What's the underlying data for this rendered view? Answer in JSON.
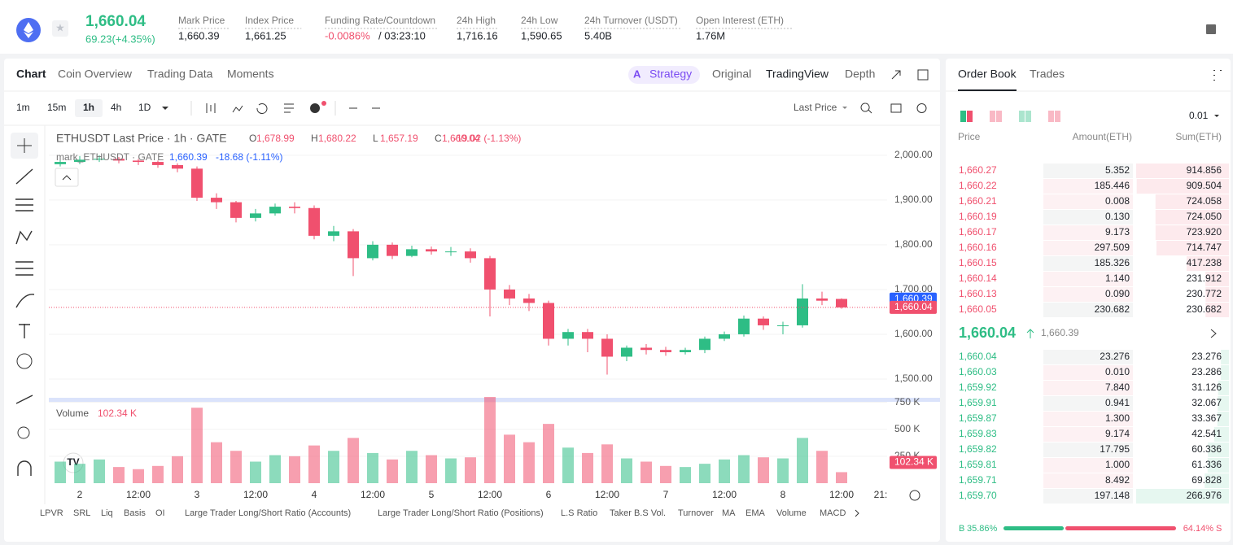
{
  "header": {
    "price": "1,660.04",
    "change": "69.23(+4.35%)",
    "stats": [
      {
        "label": "Mark Price",
        "value": "1,660.39"
      },
      {
        "label": "Index Price",
        "value": "1,661.25"
      },
      {
        "label": "Funding Rate/Countdown",
        "value": "-0.0086%",
        "extra": "/ 03:23:10"
      },
      {
        "label": "24h High",
        "value": "1,716.16"
      },
      {
        "label": "24h Low",
        "value": "1,590.65"
      },
      {
        "label": "24h Turnover (USDT)",
        "value": "5.40B"
      },
      {
        "label": "Open Interest (ETH)",
        "value": "1.76M"
      }
    ]
  },
  "tabs": [
    "Chart",
    "Coin Overview",
    "Trading Data",
    "Moments"
  ],
  "views": [
    "Strategy",
    "Original",
    "TradingView",
    "Depth"
  ],
  "intervals": [
    "1m",
    "15m",
    "1h",
    "4h",
    "1D"
  ],
  "price_source": "Last Price",
  "chart_data": {
    "type": "candlestick",
    "title": "ETHUSDT Last Price · 1h · GATE",
    "legend": [
      {
        "key": "O",
        "value": "1,678.99"
      },
      {
        "key": "H",
        "value": "1,680.22"
      },
      {
        "key": "L",
        "value": "1,657.19"
      },
      {
        "key": "C",
        "value": "1,660.04"
      }
    ],
    "change": "-19.02 (-1.13%)",
    "mark_title": "mark_ETHUSDT · GATE",
    "mark_value": "1,660.39",
    "mark_change": "-18.68 (-1.11%)",
    "open": [
      1980,
      1985,
      1990,
      1992,
      1988,
      1985,
      1978,
      1970,
      1905,
      1895,
      1860,
      1870,
      1885,
      1882,
      1820,
      1830,
      1770,
      1800,
      1775,
      1790,
      1785,
      1785,
      1770,
      1700,
      1680,
      1670,
      1590,
      1605,
      1590,
      1550,
      1570,
      1565,
      1560,
      1565,
      1590,
      1600,
      1635,
      1620,
      1620,
      1680,
      1678.99
    ],
    "high": [
      1995,
      1998,
      2000,
      1996,
      1992,
      1988,
      1982,
      1975,
      1915,
      1898,
      1880,
      1892,
      1895,
      1888,
      1842,
      1835,
      1808,
      1805,
      1798,
      1796,
      1795,
      1792,
      1775,
      1710,
      1690,
      1675,
      1612,
      1612,
      1600,
      1575,
      1578,
      1572,
      1570,
      1595,
      1606,
      1642,
      1640,
      1628,
      1712,
      1695,
      1680.22
    ],
    "low": [
      1975,
      1980,
      1985,
      1982,
      1978,
      1972,
      1962,
      1898,
      1880,
      1850,
      1852,
      1865,
      1870,
      1812,
      1808,
      1730,
      1765,
      1768,
      1772,
      1778,
      1775,
      1760,
      1640,
      1665,
      1652,
      1575,
      1575,
      1560,
      1510,
      1540,
      1555,
      1552,
      1555,
      1558,
      1585,
      1595,
      1610,
      1600,
      1615,
      1665,
      1657.19
    ],
    "close": [
      1985,
      1990,
      1992,
      1988,
      1985,
      1978,
      1970,
      1905,
      1895,
      1860,
      1870,
      1885,
      1882,
      1820,
      1830,
      1770,
      1800,
      1775,
      1790,
      1785,
      1785,
      1770,
      1700,
      1680,
      1670,
      1590,
      1605,
      1590,
      1550,
      1570,
      1565,
      1560,
      1565,
      1590,
      1600,
      1635,
      1620,
      1620,
      1680,
      1675,
      1660.04
    ],
    "volume": [
      200,
      180,
      220,
      150,
      130,
      160,
      250,
      700,
      380,
      300,
      200,
      260,
      250,
      350,
      300,
      420,
      280,
      220,
      300,
      260,
      230,
      240,
      800,
      450,
      380,
      550,
      330,
      280,
      360,
      230,
      200,
      160,
      150,
      180,
      220,
      260,
      240,
      230,
      420,
      300,
      102.34
    ],
    "volume_title": "Volume",
    "volume_label": "102.34 K",
    "up_color": "#2ebd85",
    "down_color": "#f0506e",
    "ylim": [
      1460,
      2056
    ],
    "yticks": [
      {
        "value": 1500,
        "label": "1,500.00"
      },
      {
        "value": 1600,
        "label": "1,600.00"
      },
      {
        "value": 1700,
        "label": "1,700.00"
      },
      {
        "value": 1800,
        "label": "1,800.00"
      },
      {
        "value": 1900,
        "label": "1,900.00"
      },
      {
        "value": 2000,
        "label": "2,000.00"
      }
    ],
    "vlim": [
      0,
      800
    ],
    "vticks": [
      {
        "value": 250,
        "label": "250 K"
      },
      {
        "value": 500,
        "label": "500 K"
      },
      {
        "value": 750,
        "label": "750 K"
      }
    ],
    "mark_price": {
      "value": 1660.39,
      "label": "1,660.39"
    },
    "last_price": {
      "value": 1660.04,
      "label": "1,660.04"
    },
    "xlabels": [
      "2",
      "12:00",
      "3",
      "12:00",
      "4",
      "12:00",
      "5",
      "12:00",
      "6",
      "12:00",
      "7",
      "12:00",
      "8",
      "12:00",
      "21:"
    ]
  },
  "indicators": [
    "LPVR",
    "SRL",
    "Liq",
    "Basis",
    "OI",
    "Large Trader Long/Short Ratio (Accounts)",
    "Large Trader Long/Short Ratio (Positions)",
    "L.S Ratio",
    "Taker B.S Vol.",
    "Turnover",
    "MA",
    "EMA",
    "Volume",
    "MACD"
  ],
  "order_book": {
    "tabs": [
      "Order Book",
      "Trades"
    ],
    "precision": "0.01",
    "columns": [
      "Price",
      "Amount(ETH)",
      "Sum(ETH)"
    ],
    "asks": [
      [
        "1,660.27",
        "5.352",
        "914.856"
      ],
      [
        "1,660.22",
        "185.446",
        "909.504"
      ],
      [
        "1,660.21",
        "0.008",
        "724.058"
      ],
      [
        "1,660.19",
        "0.130",
        "724.050"
      ],
      [
        "1,660.17",
        "9.173",
        "723.920"
      ],
      [
        "1,660.16",
        "297.509",
        "714.747"
      ],
      [
        "1,660.15",
        "185.326",
        "417.238"
      ],
      [
        "1,660.14",
        "1.140",
        "231.912"
      ],
      [
        "1,660.13",
        "0.090",
        "230.772"
      ],
      [
        "1,660.05",
        "230.682",
        "230.682"
      ]
    ],
    "mid": {
      "price": "1,660.04",
      "mark": "1,660.39"
    },
    "bids": [
      [
        "1,660.04",
        "23.276",
        "23.276"
      ],
      [
        "1,660.03",
        "0.010",
        "23.286"
      ],
      [
        "1,659.92",
        "7.840",
        "31.126"
      ],
      [
        "1,659.91",
        "0.941",
        "32.067"
      ],
      [
        "1,659.87",
        "1.300",
        "33.367"
      ],
      [
        "1,659.83",
        "9.174",
        "42.541"
      ],
      [
        "1,659.82",
        "17.795",
        "60.336"
      ],
      [
        "1,659.81",
        "1.000",
        "61.336"
      ],
      [
        "1,659.71",
        "8.492",
        "69.828"
      ],
      [
        "1,659.70",
        "197.148",
        "266.976"
      ]
    ],
    "ratio": {
      "buy_tag": "B",
      "buy": 35.86,
      "buy_label": "35.86%",
      "sell": 64.14,
      "sell_label": "64.14%",
      "sell_tag": "S"
    }
  }
}
